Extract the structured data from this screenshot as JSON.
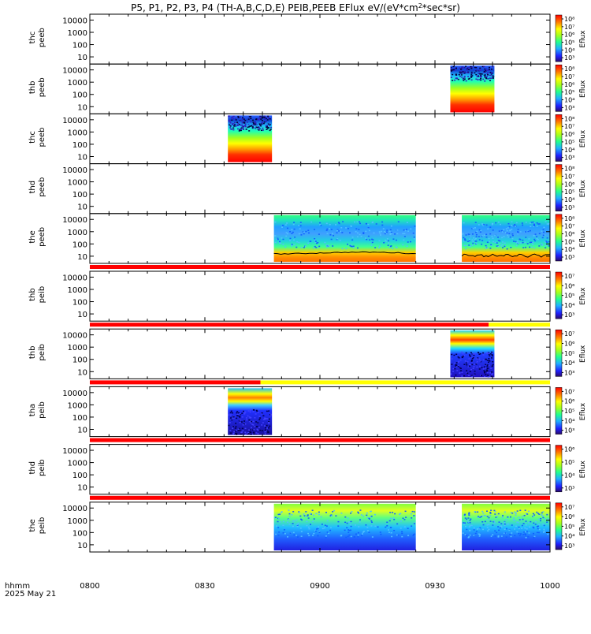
{
  "chart_data": {
    "type": "heatmap",
    "title": "P5, P1, P2, P3, P4 (TH-A,B,C,D,E) PEIB,PEEB EFlux eV/(eV*cm²*sec*sr)",
    "title_parts": {
      "main": "P5, P1, P2, P3, P4 (TH-A,B,C,D,E) PEIB,PEEB EFlux eV/(eV*cm",
      "sup": "2",
      "tail": "*sec*sr)"
    },
    "xaxis": {
      "label_line1": "hhmm",
      "label_line2": "2025 May 21",
      "ticks": [
        "0800",
        "0830",
        "0900",
        "0930",
        "1000"
      ],
      "tick_minutes": [
        0,
        30,
        60,
        90,
        120
      ],
      "range_minutes": [
        0,
        120
      ]
    },
    "colorbar_label": "Eflux",
    "panels": [
      {
        "probe": "thc",
        "species": "peeb",
        "yticks": [
          "10",
          "100",
          "1000",
          "10000"
        ],
        "cbar_ticks": [
          "10⁸",
          "10⁷",
          "10⁶",
          "10⁵",
          "10⁴",
          "10³"
        ],
        "cbar_max_exp": 8,
        "cbar_min_exp": 3,
        "data_intervals": [],
        "flag_bar": null
      },
      {
        "probe": "thb",
        "species": "peeb",
        "yticks": [
          "10",
          "100",
          "1000",
          "10000"
        ],
        "cbar_ticks": [
          "10⁸",
          "10⁷",
          "10⁶",
          "10⁵",
          "10⁴",
          "10³"
        ],
        "cbar_max_exp": 8,
        "cbar_min_exp": 3,
        "data_intervals": [
          {
            "start_min": 94,
            "end_min": 105.5,
            "kind": "electron_burst_b"
          }
        ],
        "flag_bar": null
      },
      {
        "probe": "thc",
        "species": "peeb",
        "yticks": [
          "10",
          "100",
          "1000",
          "10000"
        ],
        "cbar_ticks": [
          "10⁸",
          "10⁷",
          "10⁶",
          "10⁵",
          "10⁴",
          "10³"
        ],
        "cbar_max_exp": 8,
        "cbar_min_exp": 3,
        "data_intervals": [
          {
            "start_min": 36,
            "end_min": 47.5,
            "kind": "electron_burst_c"
          }
        ],
        "flag_bar": null
      },
      {
        "probe": "thd",
        "species": "peeb",
        "yticks": [
          "10",
          "100",
          "1000",
          "10000"
        ],
        "cbar_ticks": [
          "10⁸",
          "10⁷",
          "10⁶",
          "10⁵",
          "10⁴",
          "10³"
        ],
        "cbar_max_exp": 8,
        "cbar_min_exp": 3,
        "data_intervals": [],
        "flag_bar": null
      },
      {
        "probe": "the",
        "species": "peeb",
        "yticks": [
          "10",
          "100",
          "1000",
          "10000"
        ],
        "cbar_ticks": [
          "10⁸",
          "10⁷",
          "10⁶",
          "10⁵",
          "10⁴",
          "10³"
        ],
        "cbar_max_exp": 8,
        "cbar_min_exp": 3,
        "data_intervals": [
          {
            "start_min": 48,
            "end_min": 85,
            "kind": "electron_mode_e"
          },
          {
            "start_min": 97,
            "end_min": 120,
            "kind": "electron_mode_e"
          }
        ],
        "flag_bar": {
          "segments": [
            {
              "start_min": 0,
              "end_min": 120,
              "color": "#ff0000"
            }
          ]
        }
      },
      {
        "probe": "thb",
        "species": "peib",
        "yticks": [
          "10",
          "100",
          "1000",
          "10000"
        ],
        "cbar_ticks": [
          "10⁷",
          "10⁶",
          "10⁵",
          "10⁴",
          "10³"
        ],
        "cbar_max_exp": 7,
        "cbar_min_exp": 3,
        "data_intervals": [],
        "flag_bar": {
          "segments": [
            {
              "start_min": 0,
              "end_min": 104,
              "color": "#ff0000"
            },
            {
              "start_min": 104,
              "end_min": 120,
              "color": "#ffff00"
            }
          ]
        }
      },
      {
        "probe": "thb",
        "species": "peib",
        "yticks": [
          "10",
          "100",
          "1000",
          "10000"
        ],
        "cbar_ticks": [
          "10⁷",
          "10⁶",
          "10⁵",
          "10⁴",
          "10³"
        ],
        "cbar_max_exp": 7,
        "cbar_min_exp": 3,
        "data_intervals": [
          {
            "start_min": 94,
            "end_min": 105.5,
            "kind": "ion_burst_b"
          }
        ],
        "flag_bar": {
          "segments": [
            {
              "start_min": 0,
              "end_min": 44.5,
              "color": "#ff0000"
            },
            {
              "start_min": 44.5,
              "end_min": 120,
              "color": "#ffff00"
            }
          ]
        }
      },
      {
        "probe": "tha",
        "species": "peib",
        "yticks": [
          "10",
          "100",
          "1000",
          "10000"
        ],
        "cbar_ticks": [
          "10⁷",
          "10⁶",
          "10⁵",
          "10⁴",
          "10³"
        ],
        "cbar_max_exp": 7,
        "cbar_min_exp": 3,
        "data_intervals": [
          {
            "start_min": 36,
            "end_min": 47.5,
            "kind": "ion_burst_a"
          }
        ],
        "flag_bar": {
          "segments": [
            {
              "start_min": 0,
              "end_min": 120,
              "color": "#ff0000"
            }
          ]
        }
      },
      {
        "probe": "thd",
        "species": "peib",
        "yticks": [
          "10",
          "100",
          "1000",
          "10000"
        ],
        "cbar_ticks": [
          "10⁶",
          "10⁵",
          "10⁴",
          "10³"
        ],
        "cbar_max_exp": 6,
        "cbar_min_exp": 3,
        "data_intervals": [],
        "flag_bar": {
          "segments": [
            {
              "start_min": 0,
              "end_min": 120,
              "color": "#ff0000"
            }
          ]
        }
      },
      {
        "probe": "the",
        "species": "peib",
        "yticks": [
          "10",
          "100",
          "1000",
          "10000"
        ],
        "cbar_ticks": [
          "10⁷",
          "10⁶",
          "10⁵",
          "10⁴",
          "10³"
        ],
        "cbar_max_exp": 7,
        "cbar_min_exp": 3,
        "data_intervals": [
          {
            "start_min": 48,
            "end_min": 85,
            "kind": "ion_mode_e"
          },
          {
            "start_min": 97,
            "end_min": 120,
            "kind": "ion_mode_e"
          }
        ],
        "flag_bar": null
      }
    ],
    "colors": {
      "flag_red": "#ff0000",
      "flag_yellow": "#ffff00"
    },
    "grid": false,
    "yscale": "log"
  }
}
